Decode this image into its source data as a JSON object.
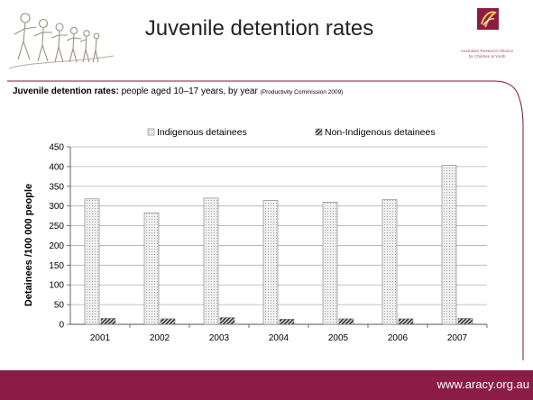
{
  "slide": {
    "title": "Juvenile detention rates",
    "subtitle_bold": "Juvenile detention rates:",
    "subtitle_rest": " people aged 10–17 years, by year ",
    "subtitle_source": "(Productivity Commission 2009)",
    "logo_caption_line1": "Australian Research Alliance",
    "logo_caption_line2": "for Children & Youth",
    "footer_url": "www.aracy.org.au"
  },
  "colors": {
    "brand": "#8b1d45",
    "frame_line": "#7a1a3d",
    "indigenous_fill": "#e9e9e9",
    "non_indigenous_fill": "#333333"
  },
  "chart_data": {
    "type": "bar",
    "categories": [
      "2001",
      "2002",
      "2003",
      "2004",
      "2005",
      "2006",
      "2007"
    ],
    "series": [
      {
        "name": "Indigenous detainees",
        "values": [
          318,
          283,
          320,
          314,
          310,
          316,
          403
        ]
      },
      {
        "name": "Non-Indigenous detainees",
        "values": [
          15,
          14,
          17,
          13,
          14,
          14,
          15
        ]
      }
    ],
    "ylabel": "Detainees /100 000 people",
    "xlabel": "",
    "ylim": [
      0,
      450
    ],
    "yticks": [
      0,
      50,
      100,
      150,
      200,
      250,
      300,
      350,
      400,
      450
    ],
    "grid": true,
    "legend_position": "top"
  }
}
